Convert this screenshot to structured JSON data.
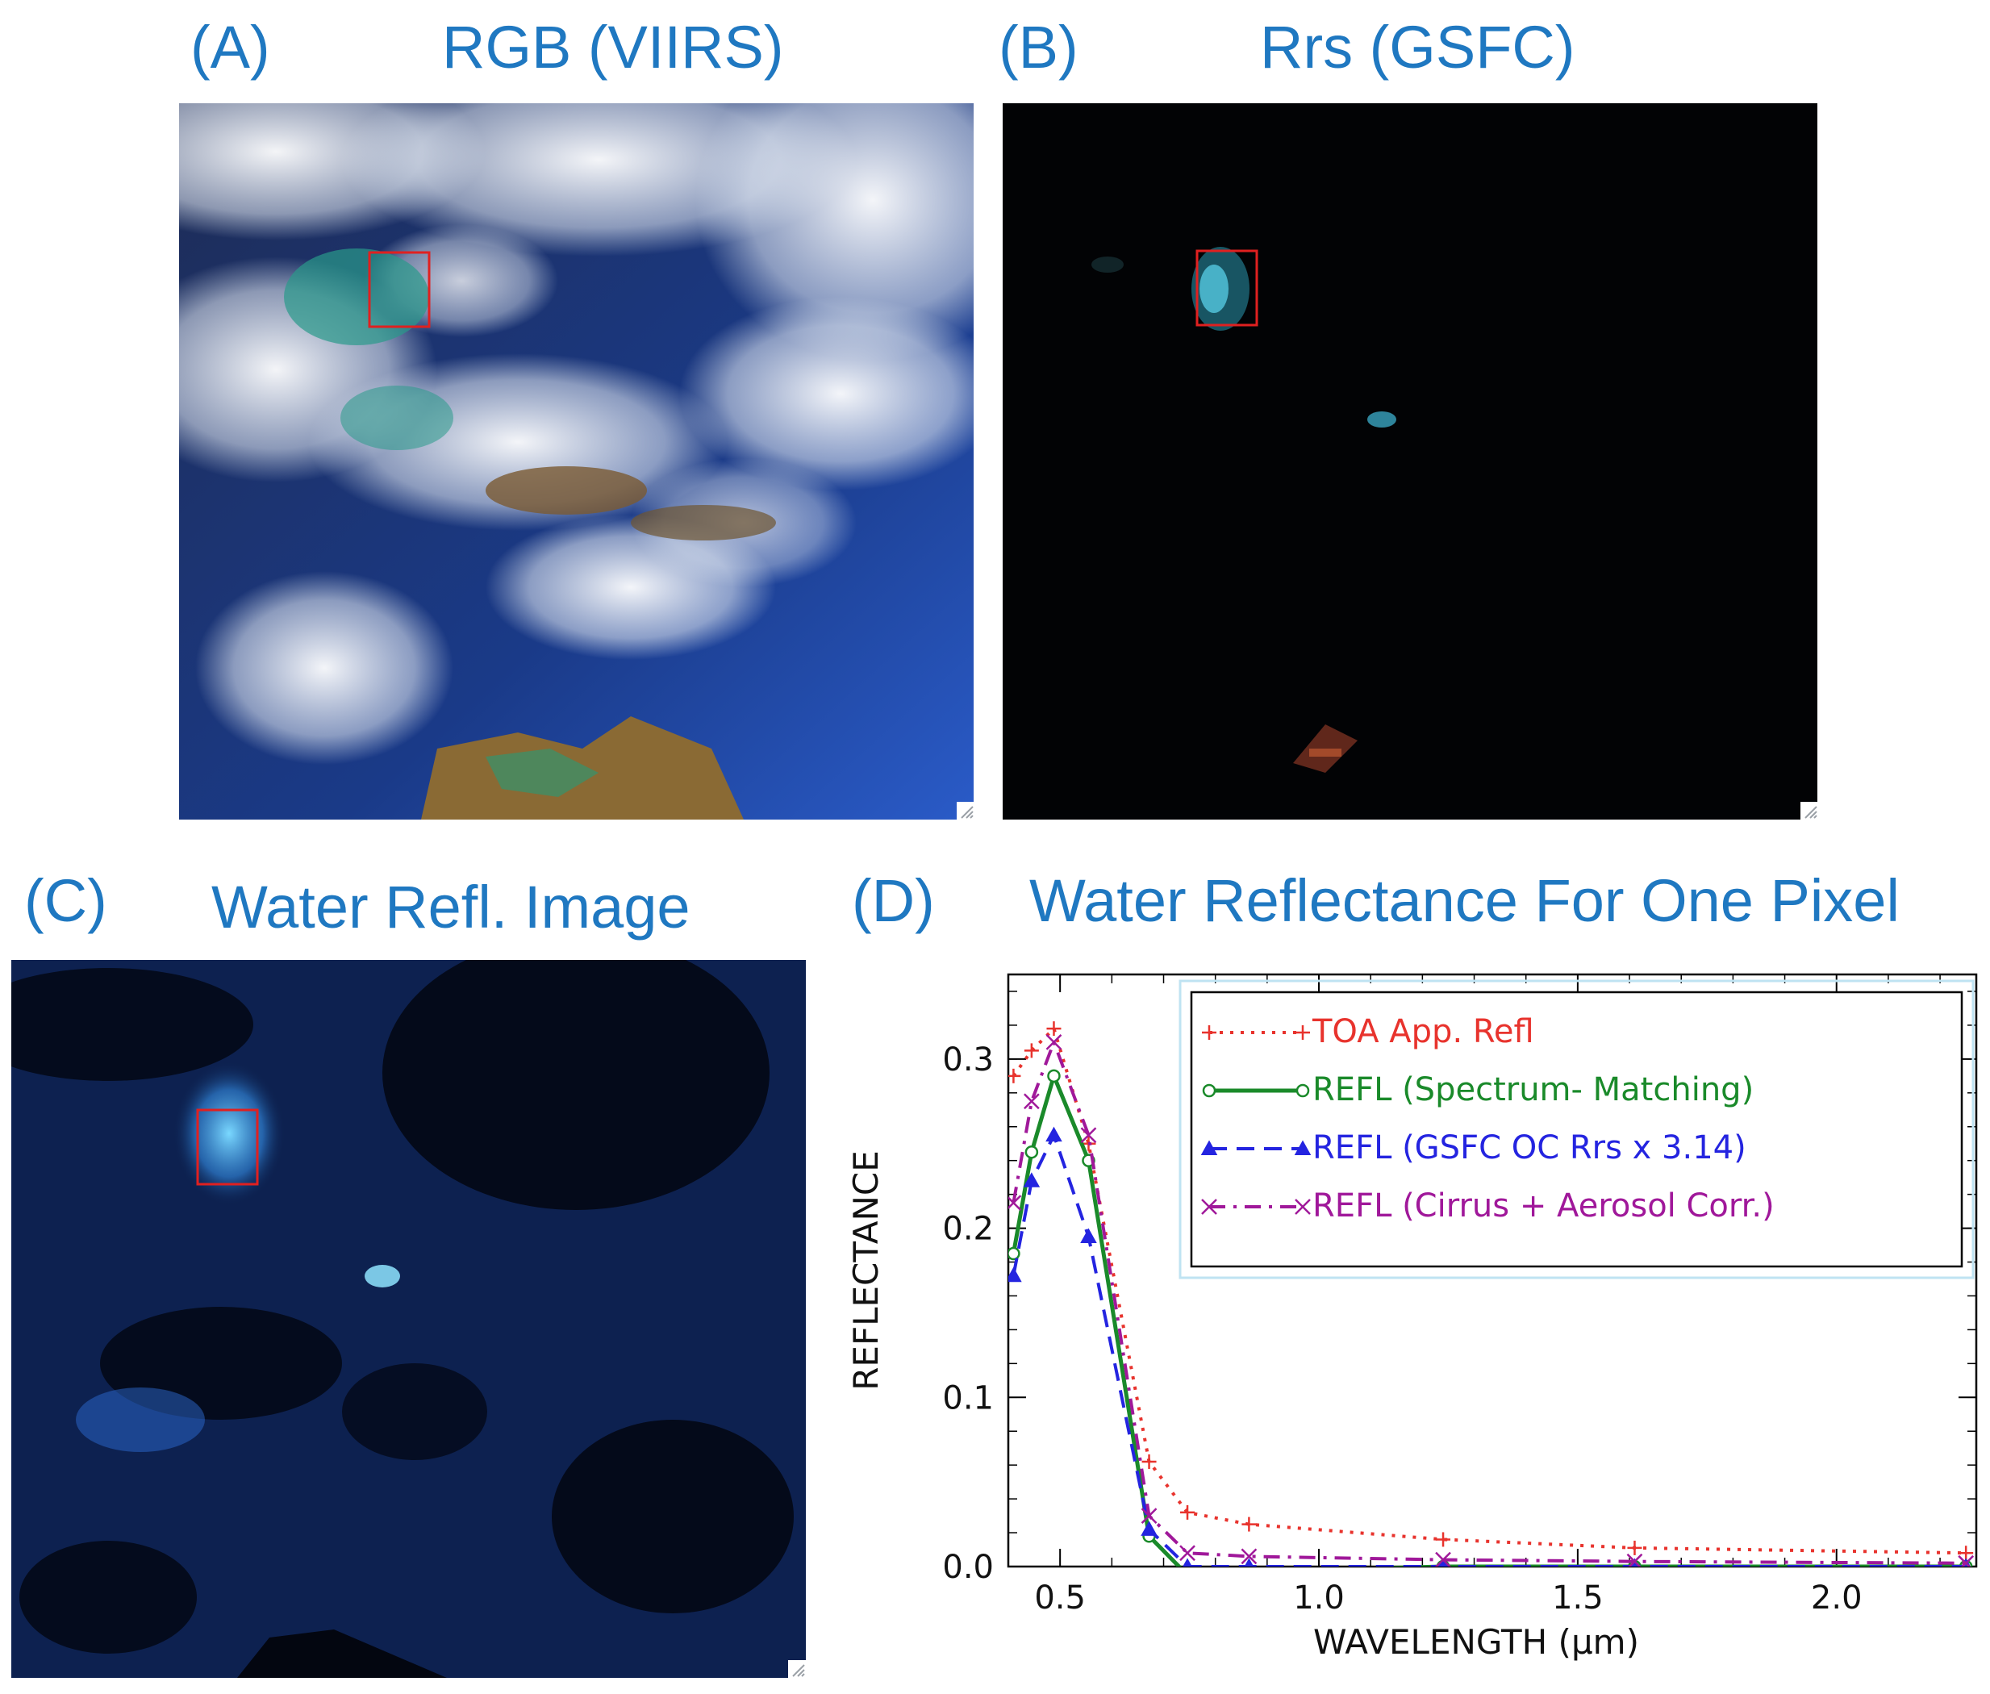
{
  "panels": {
    "a": {
      "label": "(A)",
      "title": "RGB (VIIRS)"
    },
    "b": {
      "label": "(B)",
      "title": "Rrs (GSFC)"
    },
    "c": {
      "label": "(C)",
      "title": "Water Refl. Image"
    },
    "d": {
      "label": "(D)",
      "title": "Water Reflectance For One Pixel"
    }
  },
  "colors": {
    "title_blue": "#1f78c1",
    "box_red": "#e02020",
    "toa": "#e8332d",
    "spectrum": "#1a8a2a",
    "gsfc": "#2424e0",
    "cirrus": "#a0189a"
  },
  "chart_data": {
    "type": "line",
    "title": "Water Reflectance For One Pixel",
    "xlabel": "WAVELENGTH (μm)",
    "ylabel": "REFLECTANCE",
    "xlim": [
      0.4,
      2.27
    ],
    "ylim": [
      0.0,
      0.35
    ],
    "x_ticks": [
      "0.5",
      "1.0",
      "1.5",
      "2.0"
    ],
    "x_tick_values": [
      0.5,
      1.0,
      1.5,
      2.0
    ],
    "y_ticks": [
      "0.0",
      "0.1",
      "0.2",
      "0.3"
    ],
    "y_tick_values": [
      0.0,
      0.1,
      0.2,
      0.3
    ],
    "legend_position": "top-right",
    "series": [
      {
        "name": "TOA App. Refl",
        "color": "#e8332d",
        "dash": "dotted",
        "marker": "plus",
        "x": [
          0.41,
          0.445,
          0.488,
          0.555,
          0.672,
          0.746,
          0.865,
          1.24,
          1.61,
          2.25
        ],
        "values": [
          0.29,
          0.305,
          0.318,
          0.25,
          0.062,
          0.032,
          0.025,
          0.016,
          0.011,
          0.008
        ]
      },
      {
        "name": "REFL (Spectrum- Matching)",
        "color": "#1a8a2a",
        "dash": "solid",
        "marker": "circle",
        "x": [
          0.41,
          0.445,
          0.488,
          0.555,
          0.672,
          0.746,
          0.865,
          1.24,
          1.61,
          2.25
        ],
        "values": [
          0.185,
          0.245,
          0.29,
          0.24,
          0.018,
          -0.005,
          -0.003,
          0.0,
          0.0,
          0.0
        ]
      },
      {
        "name": "REFL (GSFC OC Rrs x 3.14)",
        "color": "#2424e0",
        "dash": "dashed",
        "marker": "triangle",
        "x": [
          0.41,
          0.445,
          0.488,
          0.555,
          0.672,
          0.746,
          0.865,
          1.24,
          1.61,
          2.25
        ],
        "values": [
          0.172,
          0.228,
          0.255,
          0.195,
          0.022,
          0.0,
          0.0,
          0.0,
          0.0,
          0.0
        ]
      },
      {
        "name": "REFL (Cirrus + Aerosol Corr.)",
        "color": "#a0189a",
        "dash": "dashdot",
        "marker": "cross",
        "x": [
          0.41,
          0.445,
          0.488,
          0.555,
          0.672,
          0.746,
          0.865,
          1.24,
          1.61,
          2.25
        ],
        "values": [
          0.215,
          0.275,
          0.31,
          0.255,
          0.03,
          0.008,
          0.006,
          0.004,
          0.003,
          0.002
        ]
      }
    ]
  }
}
